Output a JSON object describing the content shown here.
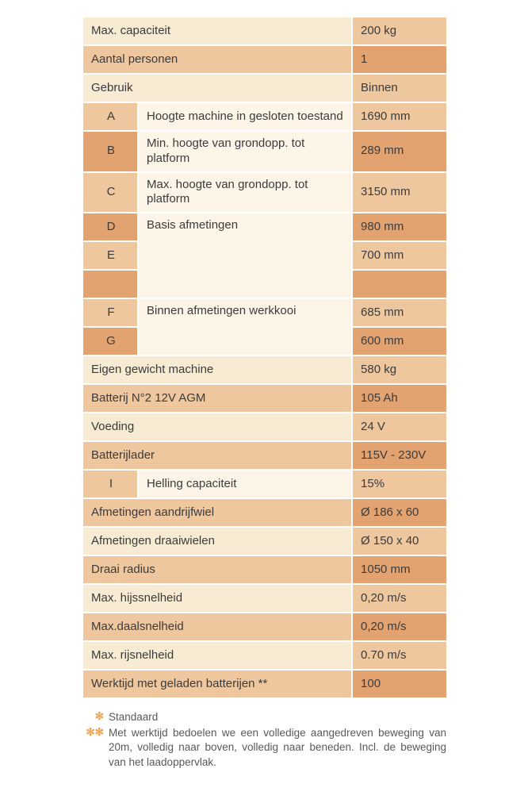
{
  "colors": {
    "cream": "#f7ebd3",
    "cream_light": "#fdf5e8",
    "dark_orange": "#e2a370",
    "light_orange": "#efc79e",
    "border": "#ffffff",
    "text": "#3b3b3b",
    "footnote_text": "#595959",
    "star": "#f2a44c"
  },
  "rows": {
    "r1": {
      "label": "Max. capaciteit",
      "value": "200 kg"
    },
    "r2": {
      "label": "Aantal personen",
      "value": "1"
    },
    "r3": {
      "label": "Gebruik",
      "value": "Binnen"
    },
    "r4": {
      "letter": "A",
      "label": "Hoogte machine in gesloten toestand",
      "value": "1690 mm"
    },
    "r5": {
      "letter": "B",
      "label": "Min. hoogte van grondopp. tot platform",
      "value": "289 mm"
    },
    "r6": {
      "letter": "C",
      "label": "Max. hoogte van grondopp. tot platform",
      "value": "3150 mm"
    },
    "r7": {
      "letter": "D",
      "label": "Basis afmetingen",
      "value": "980 mm"
    },
    "r8": {
      "letter": "E",
      "value": "700 mm"
    },
    "r9": {
      "value": ""
    },
    "r10": {
      "letter": "F",
      "label": "Binnen afmetingen werkkooi",
      "value": "685 mm"
    },
    "r11": {
      "letter": "G",
      "value": "600 mm"
    },
    "r12": {
      "label": "Eigen gewicht machine",
      "value": "580 kg"
    },
    "r13": {
      "label": "Batterij N°2 12V AGM",
      "value": "105 Ah"
    },
    "r14": {
      "label": "Voeding",
      "value": "24 V"
    },
    "r15": {
      "label": "Batterijlader",
      "value": "115V - 230V"
    },
    "r16": {
      "letter": "I",
      "label": "Helling capaciteit",
      "value": "15%"
    },
    "r17": {
      "label": "Afmetingen aandrijfwiel",
      "value": "Ø 186 x 60"
    },
    "r18": {
      "label": "Afmetingen draaiwielen",
      "value": "Ø 150 x 40"
    },
    "r19": {
      "label": "Draai radius",
      "value": "1050 mm"
    },
    "r20": {
      "label": "Max. hijssnelheid",
      "value": "0,20 m/s"
    },
    "r21": {
      "label": "Max.daalsnelheid",
      "value": "0,20 m/s"
    },
    "r22": {
      "label": "Max. rijsnelheid",
      "value": "0.70 m/s"
    },
    "r23": {
      "label": "Werktijd met geladen batterijen **",
      "value": "100"
    }
  },
  "footnotes": {
    "f1": {
      "mark": "✻",
      "text": "Standaard"
    },
    "f2": {
      "mark": "✻✻",
      "text": "Met werktijd bedoelen we een volledige aangedreven beweging van 20m, volledig naar boven, volledig naar beneden. Incl. de beweging van het laadoppervlak."
    }
  }
}
